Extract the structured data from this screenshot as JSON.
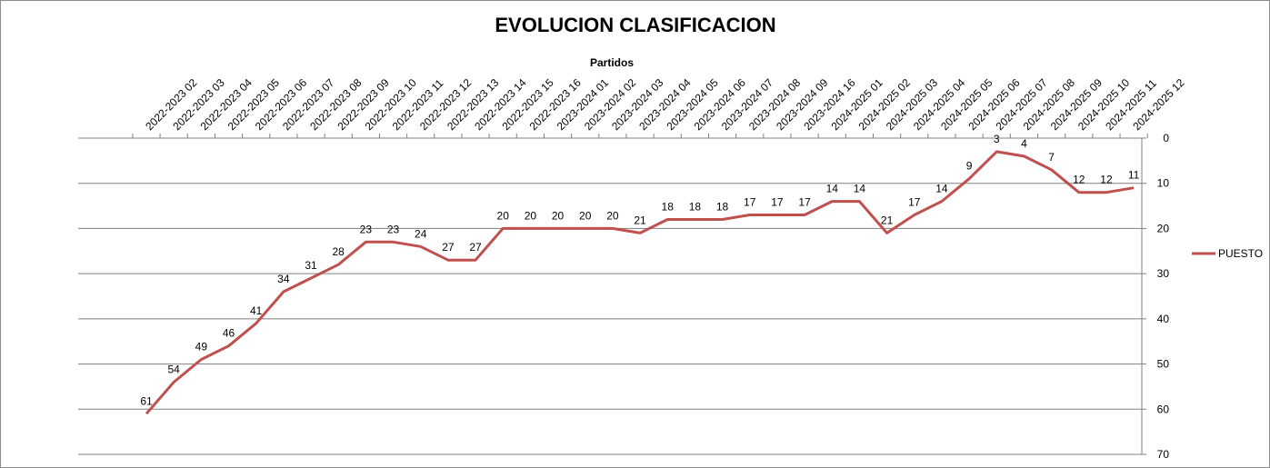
{
  "chart_data": {
    "type": "line",
    "title": "EVOLUCION CLASIFICACION",
    "xlabel": "Partidos",
    "ylabel": "",
    "ylim": [
      0,
      70
    ],
    "y_reversed": true,
    "y_axis_position": "right",
    "x_axis_position": "top",
    "y_ticks": [
      0,
      10,
      20,
      30,
      40,
      50,
      60,
      70
    ],
    "grid": true,
    "legend_position": "right",
    "categories": [
      "2022-2023 02",
      "2022-2023 03",
      "2022-2023 04",
      "2022-2023 05",
      "2022-2023 06",
      "2022-2023 07",
      "2022-2023 08",
      "2022-2023 09",
      "2022-2023 10",
      "2022-2023 11",
      "2022-2023 12",
      "2022-2023 13",
      "2022-2023 14",
      "2022-2023 15",
      "2022-2023 16",
      "2023-2024 01",
      "2023-2024 02",
      "2023-2024 03",
      "2023-2024 04",
      "2023-2024 05",
      "2023-2024 06",
      "2023-2024 07",
      "2023-2024 08",
      "2023-2024 09",
      "2023-2024 16",
      "2024-2025 01",
      "2024-2025 02",
      "2024-2025 03",
      "2024-2025 04",
      "2024-2025 05",
      "2024-2025 06",
      "2024-2025 07",
      "2024-2025 08",
      "2024-2025 09",
      "2024-2025 10",
      "2024-2025 11",
      "2024-2025 12"
    ],
    "series": [
      {
        "name": "PUESTO",
        "color": "#c0504d",
        "values": [
          61,
          54,
          49,
          46,
          41,
          34,
          31,
          28,
          23,
          23,
          24,
          27,
          27,
          20,
          20,
          20,
          20,
          20,
          21,
          18,
          18,
          18,
          17,
          17,
          17,
          14,
          14,
          21,
          17,
          14,
          9,
          3,
          4,
          7,
          12,
          12,
          11
        ]
      }
    ]
  }
}
